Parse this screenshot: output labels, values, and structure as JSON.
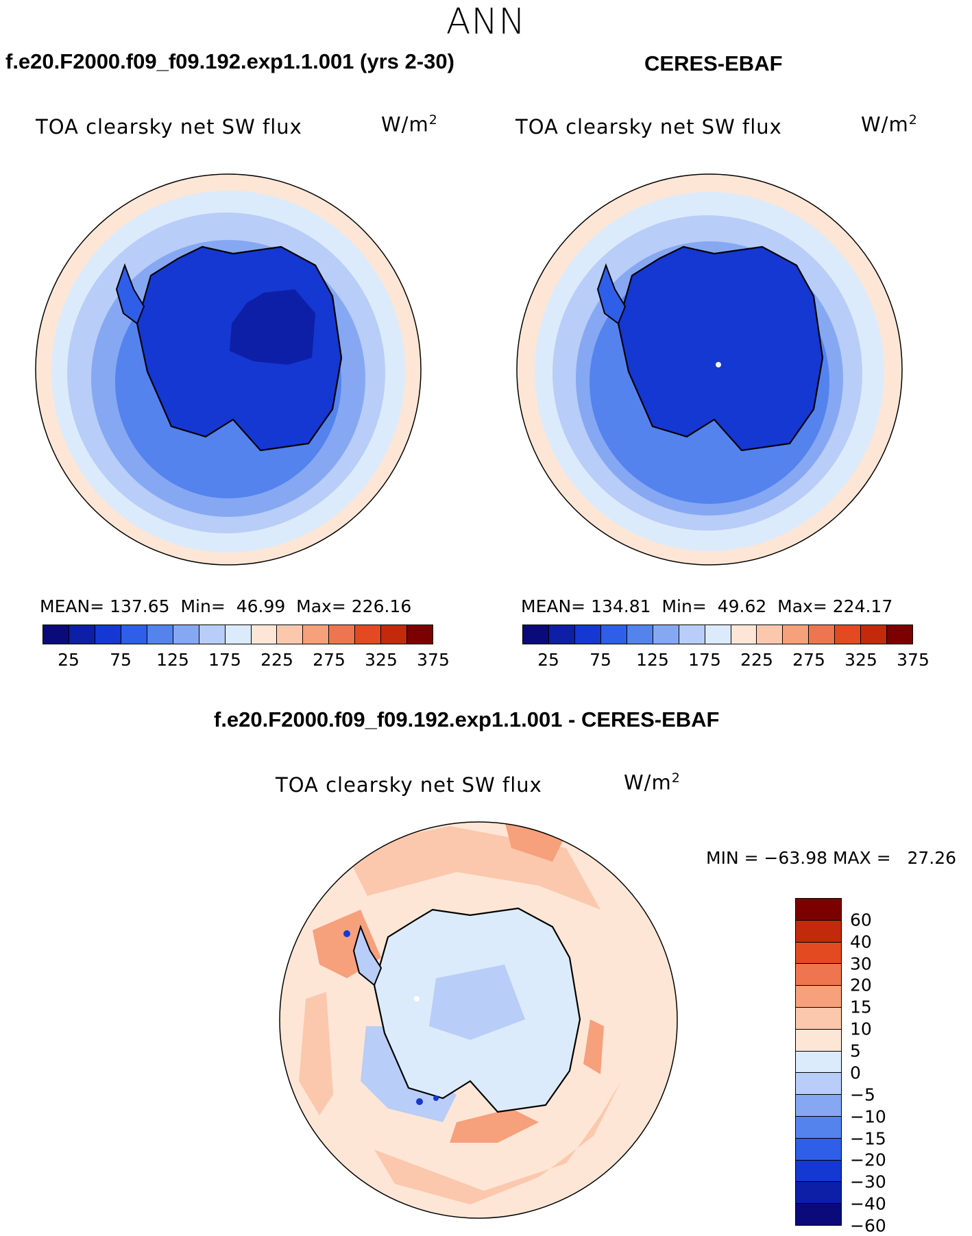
{
  "page": {
    "season": "ANN"
  },
  "panels": {
    "model": {
      "title": "f.e20.F2000.f09_f09.192.exp1.1.001 (yrs 2-30)",
      "label": "TOA clearsky net SW flux",
      "units_base": "W/m",
      "units_exp": "2",
      "mean_label": "MEAN=",
      "mean": "137.65",
      "min_label": "Min=",
      "min": "46.99",
      "max_label": "Max=",
      "max": "226.16"
    },
    "obs": {
      "title": "CERES-EBAF",
      "label": "TOA clearsky net SW flux",
      "units_base": "W/m",
      "units_exp": "2",
      "mean_label": "MEAN=",
      "mean": "134.81",
      "min_label": "Min=",
      "min": "49.62",
      "max_label": "Max=",
      "max": "224.17"
    },
    "diff": {
      "title": "f.e20.F2000.f09_f09.192.exp1.1.001 - CERES-EBAF",
      "label": "TOA clearsky net SW flux",
      "units_base": "W/m",
      "units_exp": "2",
      "minmax": "MIN = −63.98 MAX =   27.26"
    }
  },
  "colorbars": {
    "abs_ticks": [
      "25",
      "75",
      "125",
      "175",
      "225",
      "275",
      "325",
      "375"
    ],
    "abs_colors": [
      "#0a0a7a",
      "#0c1fa6",
      "#1438d1",
      "#2f5ee8",
      "#5483ee",
      "#86a8f2",
      "#b8cdf7",
      "#dcebfb",
      "#fde6d6",
      "#fbc8ad",
      "#f6a07c",
      "#ef7550",
      "#e34a22",
      "#c32a0c",
      "#7d0000"
    ],
    "diff_ticks": [
      "60",
      "40",
      "30",
      "20",
      "15",
      "10",
      "5",
      "0",
      "−5",
      "−10",
      "−15",
      "−20",
      "−30",
      "−40",
      "−60"
    ],
    "diff_colors": [
      "#0a0a7a",
      "#0c1fa6",
      "#1438d1",
      "#2f5ee8",
      "#5483ee",
      "#86a8f2",
      "#b8cdf7",
      "#dcebfb",
      "#fde6d6",
      "#fbc8ad",
      "#f6a07c",
      "#ef7550",
      "#e34a22",
      "#c32a0c",
      "#7d0000"
    ]
  }
}
